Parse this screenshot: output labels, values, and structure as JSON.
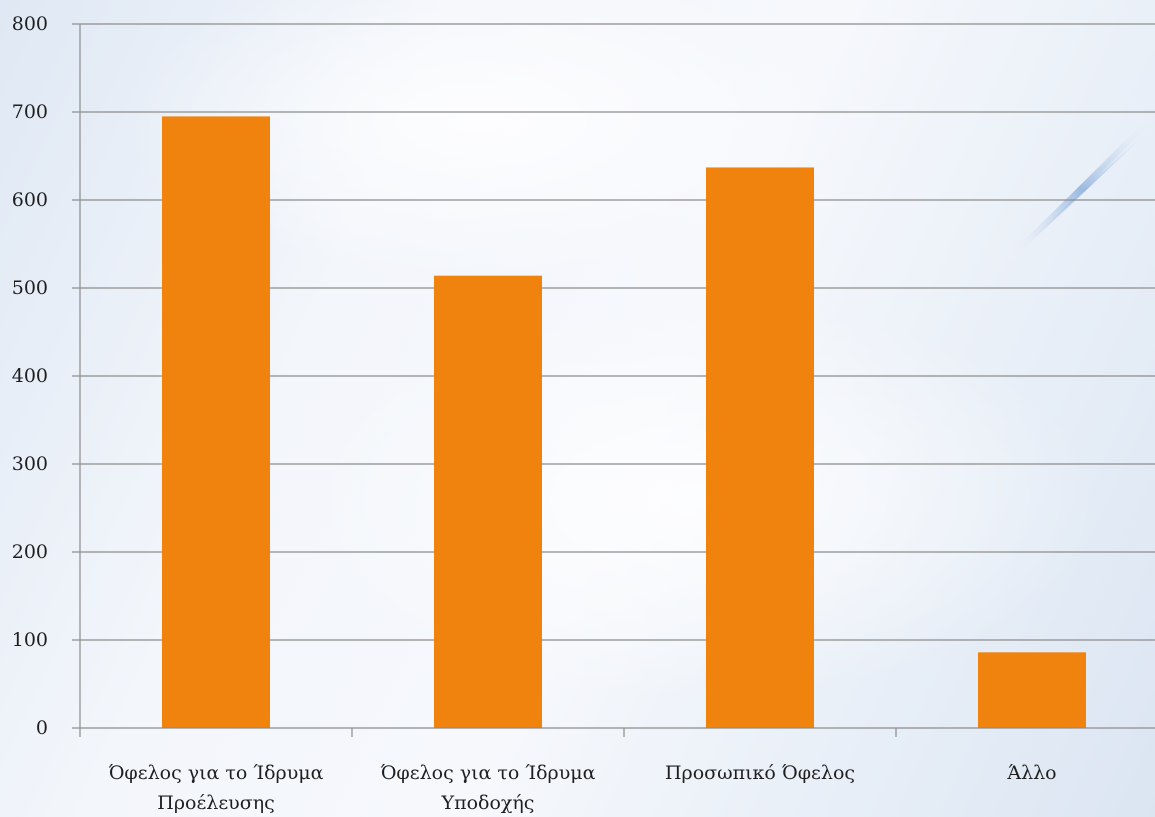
{
  "chart_data": {
    "type": "bar",
    "categories": [
      [
        "Όφελος για το Ίδρυμα",
        "Προέλευσης"
      ],
      [
        "Όφελος για το Ίδρυμα",
        "Υποδοχής"
      ],
      [
        "Προσωπικό Όφελος"
      ],
      [
        "Άλλο"
      ]
    ],
    "values": [
      695,
      514,
      637,
      86
    ],
    "ylim": [
      0,
      800
    ],
    "yticks": [
      0,
      100,
      200,
      300,
      400,
      500,
      600,
      700,
      800
    ],
    "grid": true,
    "legend": "none",
    "title": "",
    "xlabel": "",
    "ylabel": "",
    "colors": {
      "bar": "#F0820E",
      "grid": "#8c8c8c",
      "axis": "#8c8c8c",
      "text": "#1f1f1f"
    }
  }
}
